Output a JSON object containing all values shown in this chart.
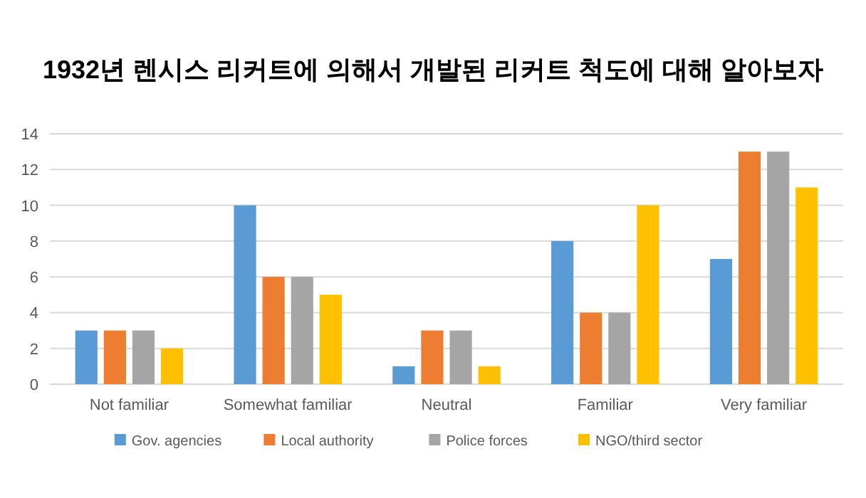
{
  "chart_data": {
    "type": "bar",
    "title": "1932년 렌시스 리커트에 의해서 개발된 리커트 척도에 대해 알아보자",
    "categories": [
      "Not familiar",
      "Somewhat familiar",
      "Neutral",
      "Familiar",
      "Very familiar"
    ],
    "series": [
      {
        "name": "Gov. agencies",
        "color": "#5b9bd5",
        "values": [
          3,
          10,
          1,
          8,
          7
        ]
      },
      {
        "name": "Local authority",
        "color": "#ed7d31",
        "values": [
          3,
          6,
          3,
          4,
          13
        ]
      },
      {
        "name": "Police forces",
        "color": "#a5a5a5",
        "values": [
          3,
          6,
          3,
          4,
          13
        ]
      },
      {
        "name": "NGO/third sector",
        "color": "#ffc000",
        "values": [
          2,
          5,
          1,
          10,
          11
        ]
      }
    ],
    "ylim": [
      0,
      14
    ],
    "yticks": [
      0,
      2,
      4,
      6,
      8,
      10,
      12,
      14
    ],
    "grid": "y",
    "legend": "bottom"
  }
}
